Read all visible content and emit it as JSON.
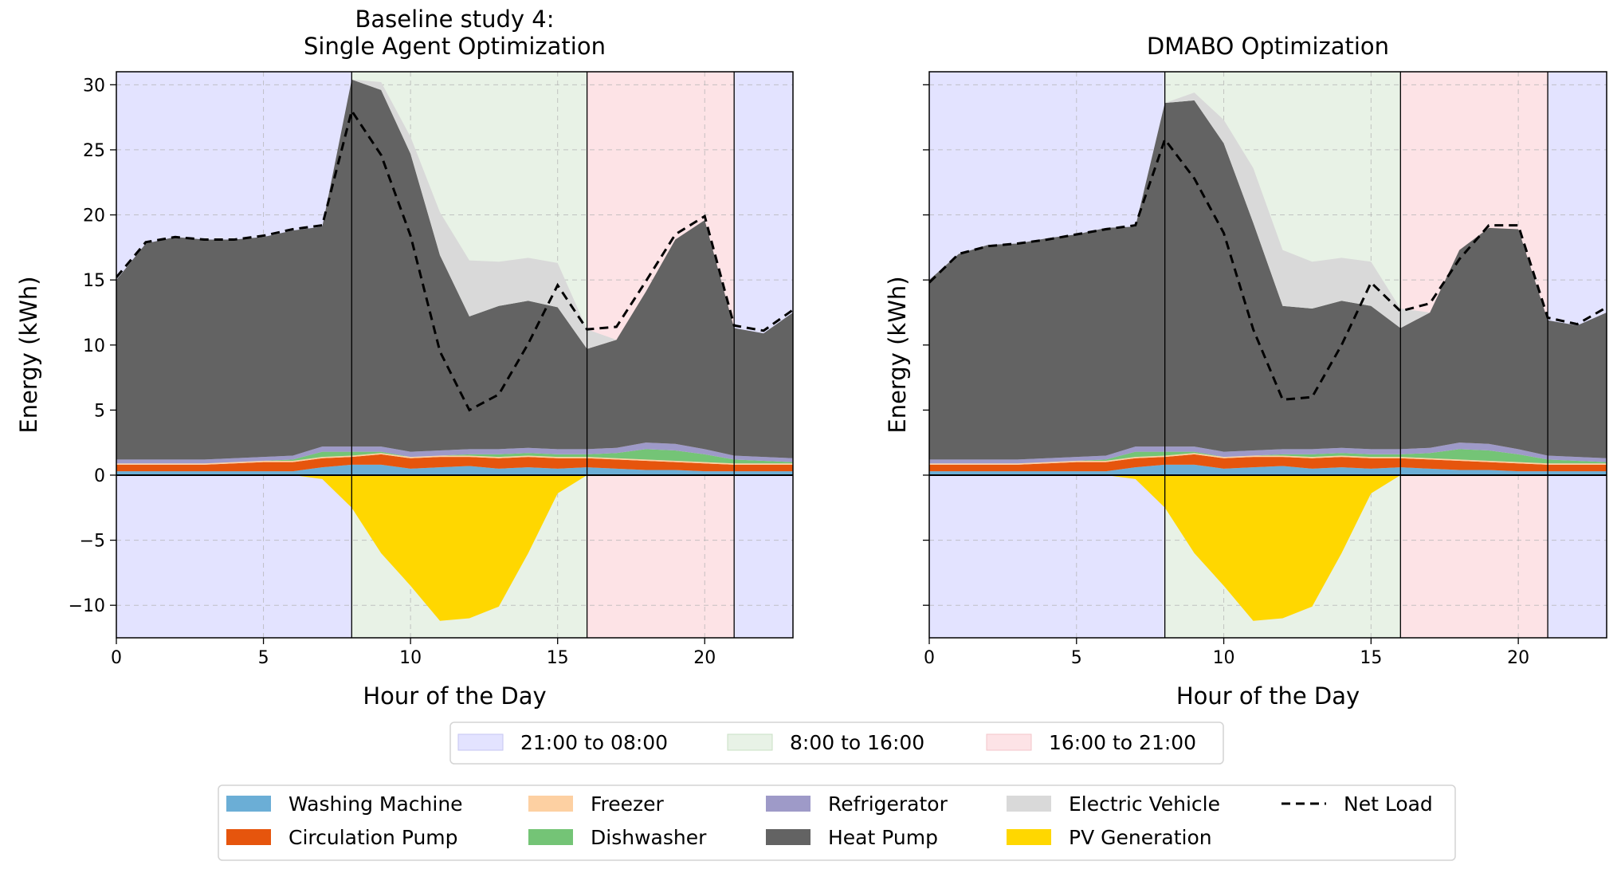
{
  "chart_data": [
    {
      "type": "area",
      "title": "Baseline study 4:\nSingle Agent Optimization",
      "xlabel": "Hour of the Day",
      "ylabel": "Energy (kWh)",
      "xlim": [
        0,
        23
      ],
      "ylim": [
        -12.5,
        31
      ],
      "xticks": [
        0,
        5,
        10,
        15,
        20
      ],
      "yticks": [
        -10,
        -5,
        0,
        5,
        10,
        15,
        20,
        25,
        30
      ],
      "grid": true,
      "x": [
        0,
        1,
        2,
        3,
        4,
        5,
        6,
        7,
        8,
        9,
        10,
        11,
        12,
        13,
        14,
        15,
        16,
        17,
        18,
        19,
        20,
        21,
        22,
        23
      ],
      "series": [
        {
          "name": "Washing Machine",
          "color": "#6baed6",
          "values": [
            0.3,
            0.3,
            0.3,
            0.3,
            0.3,
            0.3,
            0.3,
            0.6,
            0.8,
            0.8,
            0.5,
            0.6,
            0.7,
            0.5,
            0.6,
            0.5,
            0.6,
            0.5,
            0.4,
            0.4,
            0.3,
            0.3,
            0.3,
            0.3
          ]
        },
        {
          "name": "Circulation Pump",
          "color": "#e6550d",
          "values": [
            0.5,
            0.5,
            0.5,
            0.5,
            0.6,
            0.7,
            0.7,
            0.7,
            0.6,
            0.8,
            0.8,
            0.8,
            0.7,
            0.8,
            0.8,
            0.8,
            0.7,
            0.7,
            0.7,
            0.6,
            0.6,
            0.5,
            0.5,
            0.5
          ]
        },
        {
          "name": "Freezer",
          "color": "#fdd0a2",
          "values": [
            0.1,
            0.1,
            0.1,
            0.1,
            0.1,
            0.1,
            0.1,
            0.1,
            0.1,
            0.1,
            0.1,
            0.1,
            0.1,
            0.1,
            0.1,
            0.1,
            0.1,
            0.1,
            0.1,
            0.1,
            0.1,
            0.1,
            0.1,
            0.1
          ]
        },
        {
          "name": "Dishwasher",
          "color": "#74c476",
          "values": [
            0,
            0,
            0,
            0,
            0,
            0,
            0.1,
            0.4,
            0.3,
            0.1,
            0,
            0,
            0.1,
            0.2,
            0.2,
            0.2,
            0.2,
            0.4,
            0.8,
            0.8,
            0.6,
            0.3,
            0.2,
            0.1
          ]
        },
        {
          "name": "Refrigerator",
          "color": "#9e9ac8",
          "values": [
            0.3,
            0.3,
            0.3,
            0.3,
            0.3,
            0.3,
            0.3,
            0.4,
            0.4,
            0.4,
            0.4,
            0.4,
            0.4,
            0.4,
            0.4,
            0.4,
            0.4,
            0.4,
            0.5,
            0.5,
            0.4,
            0.3,
            0.3,
            0.3
          ]
        },
        {
          "name": "Heat Pump",
          "color": "#636363",
          "values": [
            13.8,
            16.6,
            17.1,
            16.9,
            16.8,
            16.9,
            17.3,
            16.9,
            28.2,
            27.4,
            22.9,
            15.0,
            10.2,
            11.0,
            11.3,
            10.9,
            7.7,
            8.3,
            11.6,
            15.7,
            17.6,
            9.8,
            9.5,
            11.2
          ]
        },
        {
          "name": "Electric Vehicle",
          "color": "#d9d9d9",
          "values": [
            0,
            0,
            0,
            0,
            0,
            0,
            0,
            0,
            0,
            0.6,
            1.3,
            3.3,
            4.3,
            3.4,
            3.3,
            3.4,
            1.5,
            0,
            0,
            0,
            0,
            0,
            0,
            0
          ]
        },
        {
          "name": "PV Generation",
          "color": "#ffd700",
          "values": [
            0,
            0,
            0,
            0,
            0,
            0,
            0,
            -0.3,
            -2.5,
            -6.0,
            -8.5,
            -11.2,
            -11.0,
            -10.1,
            -6.0,
            -1.4,
            0,
            0,
            0,
            0,
            0,
            0,
            0,
            0
          ]
        }
      ],
      "net_load": {
        "name": "Net Load",
        "values": [
          15.2,
          17.9,
          18.3,
          18.1,
          18.1,
          18.4,
          18.9,
          19.2,
          28.0,
          24.6,
          18.4,
          9.5,
          5.0,
          6.2,
          10.1,
          14.6,
          11.2,
          11.4,
          14.9,
          18.5,
          19.9,
          11.5,
          11.1,
          12.7
        ]
      },
      "periods": [
        {
          "label": "21:00 to 08:00",
          "start": 0,
          "end": 8,
          "color": "#e3e3ff"
        },
        {
          "label": "8:00 to 16:00",
          "start": 8,
          "end": 16,
          "color": "#e8f2e6"
        },
        {
          "label": "16:00 to 21:00",
          "start": 16,
          "end": 21,
          "color": "#fde3e6"
        },
        {
          "label": "21:00 to 08:00",
          "start": 21,
          "end": 23,
          "color": "#e3e3ff"
        }
      ]
    },
    {
      "type": "area",
      "title": "DMABO Optimization",
      "xlabel": "Hour of the Day",
      "ylabel": "Energy (kWh)",
      "xlim": [
        0,
        23
      ],
      "ylim": [
        -12.5,
        31
      ],
      "xticks": [
        0,
        5,
        10,
        15,
        20
      ],
      "yticks": [
        -10,
        -5,
        0,
        5,
        10,
        15,
        20,
        25,
        30
      ],
      "grid": true,
      "x": [
        0,
        1,
        2,
        3,
        4,
        5,
        6,
        7,
        8,
        9,
        10,
        11,
        12,
        13,
        14,
        15,
        16,
        17,
        18,
        19,
        20,
        21,
        22,
        23
      ],
      "series": [
        {
          "name": "Washing Machine",
          "color": "#6baed6",
          "values": [
            0.3,
            0.3,
            0.3,
            0.3,
            0.3,
            0.3,
            0.3,
            0.6,
            0.8,
            0.8,
            0.5,
            0.6,
            0.7,
            0.5,
            0.6,
            0.5,
            0.6,
            0.5,
            0.4,
            0.4,
            0.3,
            0.3,
            0.3,
            0.3
          ]
        },
        {
          "name": "Circulation Pump",
          "color": "#e6550d",
          "values": [
            0.5,
            0.5,
            0.5,
            0.5,
            0.6,
            0.7,
            0.7,
            0.7,
            0.6,
            0.8,
            0.8,
            0.8,
            0.7,
            0.8,
            0.8,
            0.8,
            0.7,
            0.7,
            0.7,
            0.6,
            0.6,
            0.5,
            0.5,
            0.5
          ]
        },
        {
          "name": "Freezer",
          "color": "#fdd0a2",
          "values": [
            0.1,
            0.1,
            0.1,
            0.1,
            0.1,
            0.1,
            0.1,
            0.1,
            0.1,
            0.1,
            0.1,
            0.1,
            0.1,
            0.1,
            0.1,
            0.1,
            0.1,
            0.1,
            0.1,
            0.1,
            0.1,
            0.1,
            0.1,
            0.1
          ]
        },
        {
          "name": "Dishwasher",
          "color": "#74c476",
          "values": [
            0,
            0,
            0,
            0,
            0,
            0,
            0.1,
            0.4,
            0.3,
            0.1,
            0,
            0,
            0.1,
            0.2,
            0.2,
            0.2,
            0.2,
            0.4,
            0.8,
            0.8,
            0.6,
            0.3,
            0.2,
            0.1
          ]
        },
        {
          "name": "Refrigerator",
          "color": "#9e9ac8",
          "values": [
            0.3,
            0.3,
            0.3,
            0.3,
            0.3,
            0.3,
            0.3,
            0.4,
            0.4,
            0.4,
            0.4,
            0.4,
            0.4,
            0.4,
            0.4,
            0.4,
            0.4,
            0.4,
            0.5,
            0.5,
            0.4,
            0.3,
            0.3,
            0.3
          ]
        },
        {
          "name": "Heat Pump",
          "color": "#636363",
          "values": [
            13.8,
            15.8,
            16.5,
            16.6,
            16.9,
            17.1,
            17.5,
            16.9,
            26.4,
            26.6,
            23.7,
            17.5,
            11.0,
            10.8,
            11.3,
            11.0,
            9.3,
            10.4,
            14.8,
            16.6,
            16.9,
            10.4,
            10.1,
            11.2
          ]
        },
        {
          "name": "Electric Vehicle",
          "color": "#d9d9d9",
          "values": [
            0,
            0,
            0,
            0,
            0,
            0,
            0,
            0,
            0,
            0.6,
            1.8,
            4.2,
            4.3,
            3.6,
            3.3,
            3.4,
            1.5,
            0,
            0,
            0,
            0,
            0,
            0,
            0
          ]
        },
        {
          "name": "PV Generation",
          "color": "#ffd700",
          "values": [
            0,
            0,
            0,
            0,
            0,
            0,
            0,
            -0.3,
            -2.5,
            -6.0,
            -8.5,
            -11.2,
            -11.0,
            -10.1,
            -6.0,
            -1.4,
            0,
            0,
            0,
            0,
            0,
            0,
            0,
            0
          ]
        }
      ],
      "net_load": {
        "name": "Net Load",
        "values": [
          14.8,
          17.0,
          17.6,
          17.8,
          18.1,
          18.5,
          18.9,
          19.2,
          25.8,
          22.8,
          18.6,
          11.2,
          5.8,
          6.0,
          10.0,
          14.8,
          12.6,
          13.2,
          16.6,
          19.2,
          19.2,
          12.1,
          11.6,
          12.9
        ]
      },
      "periods": [
        {
          "label": "21:00 to 08:00",
          "start": 0,
          "end": 8,
          "color": "#e3e3ff"
        },
        {
          "label": "8:00 to 16:00",
          "start": 8,
          "end": 16,
          "color": "#e8f2e6"
        },
        {
          "label": "16:00 to 21:00",
          "start": 16,
          "end": 21,
          "color": "#fde3e6"
        },
        {
          "label": "21:00 to 08:00",
          "start": 21,
          "end": 23,
          "color": "#e3e3ff"
        }
      ]
    }
  ],
  "legend_periods": [
    {
      "label": "21:00 to 08:00",
      "color": "#e3e3ff",
      "edge": "#c6c6f0"
    },
    {
      "label": "8:00 to 16:00",
      "color": "#e8f2e6",
      "edge": "#c9e0c4"
    },
    {
      "label": "16:00 to 21:00",
      "color": "#fde3e6",
      "edge": "#f3c4ca"
    }
  ],
  "legend_series": [
    {
      "label": "Washing Machine",
      "color": "#6baed6",
      "kind": "patch"
    },
    {
      "label": "Circulation Pump",
      "color": "#e6550d",
      "kind": "patch"
    },
    {
      "label": "Freezer",
      "color": "#fdd0a2",
      "kind": "patch"
    },
    {
      "label": "Dishwasher",
      "color": "#74c476",
      "kind": "patch"
    },
    {
      "label": "Refrigerator",
      "color": "#9e9ac8",
      "kind": "patch"
    },
    {
      "label": "Heat Pump",
      "color": "#636363",
      "kind": "patch"
    },
    {
      "label": "Electric Vehicle",
      "color": "#d9d9d9",
      "kind": "patch"
    },
    {
      "label": "PV Generation",
      "color": "#ffd700",
      "kind": "patch"
    },
    {
      "label": "Net Load",
      "color": "#000000",
      "kind": "dash"
    }
  ]
}
